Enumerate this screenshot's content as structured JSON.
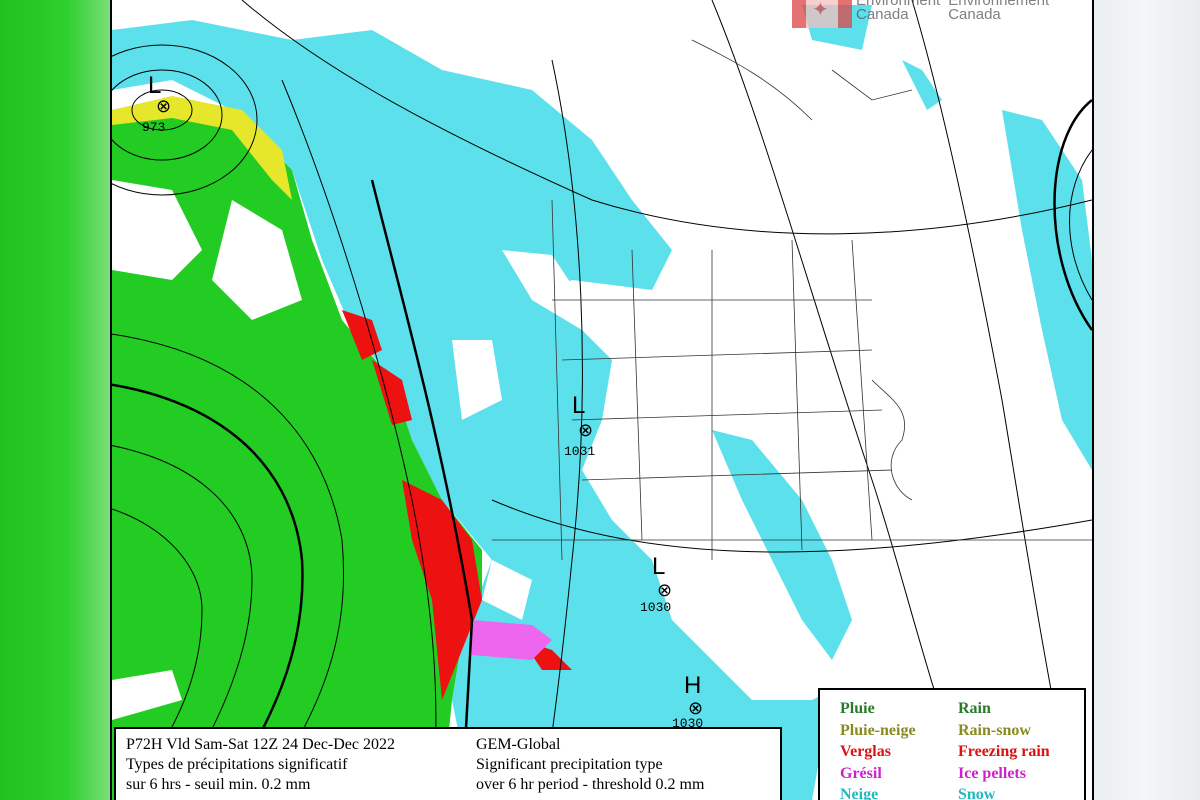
{
  "logo": {
    "text_en": [
      "Environment",
      "Canada"
    ],
    "text_fr": [
      "Environnement",
      "Canada"
    ],
    "colors": {
      "flag": "#dd4444"
    }
  },
  "pressure_systems": [
    {
      "type": "L",
      "value": "973"
    },
    {
      "type": "L",
      "value": "1031"
    },
    {
      "type": "L",
      "value": "1030"
    },
    {
      "type": "H",
      "value": "1030"
    }
  ],
  "info": {
    "line1_fr": "P72H Vld Sam-Sat 12Z 24 Dec-Dec 2022",
    "line2_fr": "Types de précipitations significatif",
    "line3_fr": "sur 6 hrs - seuil min. 0.2 mm",
    "line1_en": "GEM-Global",
    "line2_en": "Significant precipitation type",
    "line3_en": "over 6 hr period - threshold 0.2 mm"
  },
  "legend": [
    {
      "fr": "Pluie",
      "en": "Rain",
      "color": "#2a7a2a",
      "map_color": "#22cc22"
    },
    {
      "fr": "Pluie-neige",
      "en": "Rain-snow",
      "color": "#8a8a20",
      "map_color": "#e6e62a"
    },
    {
      "fr": "Verglas",
      "en": "Freezing rain",
      "color": "#dd1111",
      "map_color": "#ee1111"
    },
    {
      "fr": "Grésil",
      "en": "Ice pellets",
      "color": "#cc22cc",
      "map_color": "#ee66ee"
    },
    {
      "fr": "Neige",
      "en": "Snow",
      "color": "#22b8c0",
      "map_color": "#5ce0ec"
    }
  ]
}
